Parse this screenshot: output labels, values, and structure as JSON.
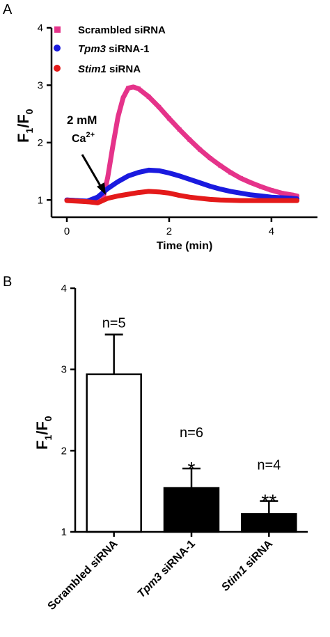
{
  "chart_data": [
    {
      "panel": "A",
      "type": "line",
      "xlabel": "Time (min)",
      "ylabel": "F1/F0",
      "xlim": [
        -0.3,
        4.9
      ],
      "ylim": [
        0.7,
        4.0
      ],
      "x_ticks": [
        "0",
        "2",
        "4"
      ],
      "y_ticks": [
        "1",
        "2",
        "3",
        "4"
      ],
      "annotation": {
        "line1": "2 mM",
        "line2": "Ca2+",
        "x": 0.6,
        "y": 1.1
      },
      "legend_position": "top-left",
      "series": [
        {
          "name": "Scrambled siRNA",
          "color": "#e5338a",
          "marker": "square",
          "x": [
            0,
            0.2,
            0.4,
            0.6,
            0.7,
            0.8,
            0.9,
            1.0,
            1.1,
            1.2,
            1.3,
            1.4,
            1.6,
            1.8,
            2.0,
            2.2,
            2.4,
            2.6,
            2.8,
            3.0,
            3.2,
            3.4,
            3.6,
            3.8,
            4.0,
            4.2,
            4.4,
            4.5
          ],
          "y": [
            1.0,
            0.99,
            0.97,
            0.97,
            1.0,
            1.4,
            1.95,
            2.45,
            2.78,
            2.95,
            2.97,
            2.94,
            2.8,
            2.62,
            2.42,
            2.23,
            2.05,
            1.88,
            1.73,
            1.6,
            1.48,
            1.38,
            1.3,
            1.23,
            1.17,
            1.12,
            1.09,
            1.07
          ]
        },
        {
          "name": "Tpm3 siRNA-1",
          "color": "#1a1adf",
          "marker": "circle",
          "x": [
            0,
            0.2,
            0.4,
            0.6,
            0.8,
            1.0,
            1.2,
            1.4,
            1.6,
            1.8,
            2.0,
            2.2,
            2.4,
            2.6,
            2.8,
            3.0,
            3.2,
            3.4,
            3.6,
            3.8,
            4.0,
            4.2,
            4.4,
            4.5
          ],
          "y": [
            1.0,
            0.99,
            0.98,
            1.05,
            1.2,
            1.32,
            1.42,
            1.48,
            1.52,
            1.51,
            1.47,
            1.42,
            1.36,
            1.3,
            1.24,
            1.19,
            1.15,
            1.12,
            1.09,
            1.07,
            1.05,
            1.04,
            1.03,
            1.02
          ]
        },
        {
          "name": "Stim1 siRNA",
          "color": "#e41a1a",
          "marker": "circle",
          "x": [
            0,
            0.2,
            0.4,
            0.6,
            0.8,
            1.0,
            1.2,
            1.4,
            1.6,
            1.8,
            2.0,
            2.2,
            2.4,
            2.6,
            2.8,
            3.0,
            3.4,
            3.8,
            4.2,
            4.5
          ],
          "y": [
            0.99,
            0.98,
            0.97,
            0.95,
            1.03,
            1.07,
            1.1,
            1.13,
            1.15,
            1.14,
            1.12,
            1.08,
            1.05,
            1.03,
            1.01,
            1.0,
            0.99,
            0.99,
            0.99,
            0.99
          ]
        }
      ],
      "legend_italic_parts": [
        "",
        "Tpm3",
        "Stim1"
      ],
      "legend_rest_parts": [
        "Scrambled siRNA",
        " siRNA-1",
        " siRNA"
      ]
    },
    {
      "panel": "B",
      "type": "bar",
      "ylabel": "F1/F0",
      "ylim": [
        1,
        4
      ],
      "y_ticks": [
        "1",
        "2",
        "3",
        "4"
      ],
      "categories": [
        "Scrambled siRNA",
        "Tpm3 siRNA-1",
        "Stim1 siRNA"
      ],
      "category_italic_parts": [
        "",
        "Tpm3",
        "Stim1"
      ],
      "category_rest_parts": [
        "Scrambled siRNA",
        " siRNA-1",
        " siRNA"
      ],
      "values": [
        2.94,
        1.54,
        1.22
      ],
      "errors": [
        0.49,
        0.24,
        0.16
      ],
      "bar_colors": [
        "#ffffff",
        "#000000",
        "#000000"
      ],
      "n_labels": [
        "n=5",
        "n=6",
        "n=4"
      ],
      "significance": [
        "",
        "*",
        "**"
      ]
    }
  ],
  "panel_labels": {
    "a": "A",
    "b": "B"
  },
  "ylabel_parts": {
    "main": "F",
    "sub1": "1",
    "slash": "/F",
    "sub0": "0"
  },
  "ca_label": {
    "base": "Ca",
    "sup": "2+"
  }
}
